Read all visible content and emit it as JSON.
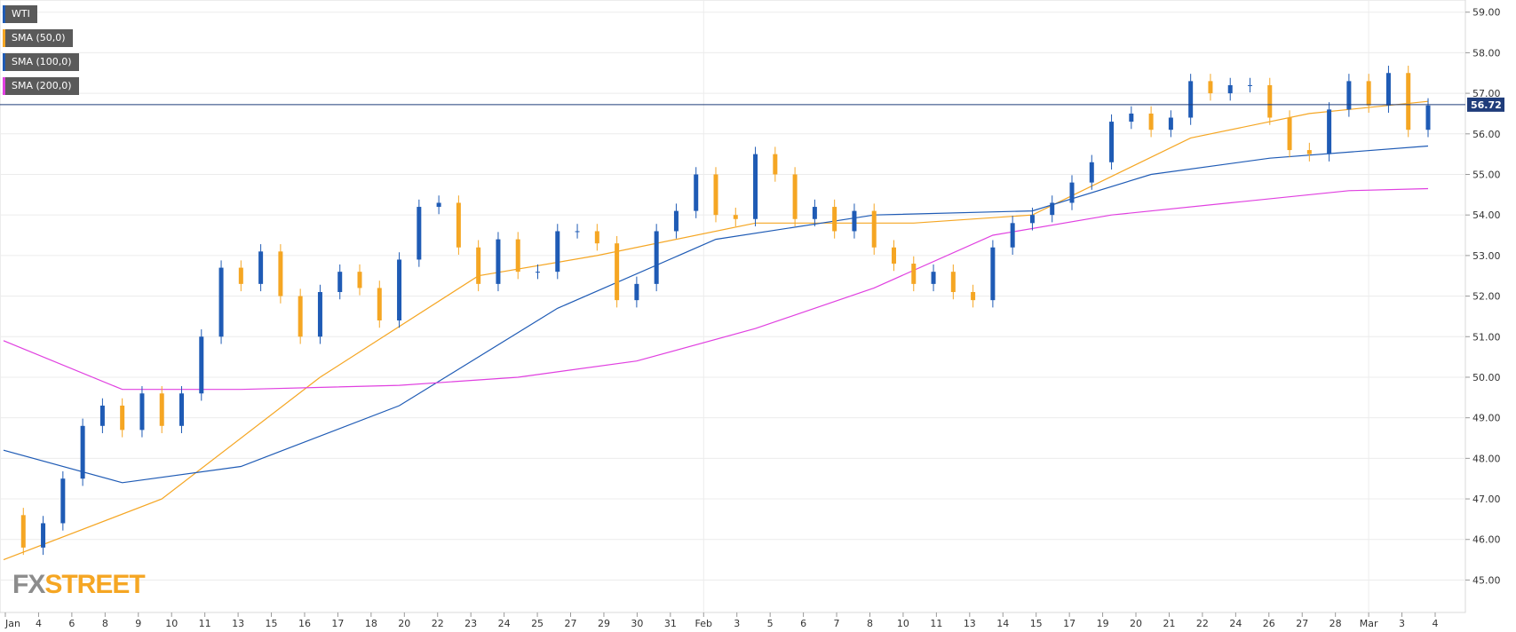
{
  "chart_data": {
    "type": "candlestick",
    "symbol": "WTI",
    "last_price": "56.72",
    "ylim": [
      44.2,
      59.3
    ],
    "y_ticks": [
      "45.00",
      "46.00",
      "47.00",
      "48.00",
      "49.00",
      "50.00",
      "51.00",
      "52.00",
      "53.00",
      "54.00",
      "55.00",
      "56.00",
      "57.00",
      "58.00",
      "59.00"
    ],
    "x_ticks": [
      "Jan",
      "4",
      "6",
      "8",
      "9",
      "10",
      "11",
      "13",
      "15",
      "16",
      "17",
      "18",
      "20",
      "22",
      "23",
      "24",
      "25",
      "27",
      "29",
      "30",
      "31",
      "Feb",
      "3",
      "5",
      "6",
      "7",
      "8",
      "10",
      "11",
      "13",
      "14",
      "15",
      "17",
      "19",
      "20",
      "21",
      "22",
      "24",
      "26",
      "27",
      "28",
      "Mar",
      "3",
      "4"
    ],
    "grid": true,
    "legend": [
      {
        "label": "WTI",
        "color": "#1f5bb5"
      },
      {
        "label": "SMA (50,0)",
        "color": "#f5a623"
      },
      {
        "label": "SMA (100,0)",
        "color": "#1f5bb5"
      },
      {
        "label": "SMA (200,0)",
        "color": "#e040e0"
      }
    ],
    "colors": {
      "up": "#1f5bb5",
      "down": "#f5a623",
      "price_line": "#1f3c7a"
    },
    "close_path": [
      46.6,
      45.8,
      46.4,
      47.5,
      48.8,
      49.3,
      48.7,
      49.6,
      48.8,
      49.6,
      51.0,
      52.7,
      52.3,
      53.1,
      52.0,
      51.0,
      52.1,
      52.6,
      52.2,
      51.4,
      52.9,
      54.2,
      54.3,
      53.2,
      52.3,
      53.4,
      52.6,
      52.6,
      53.6,
      53.6,
      53.3,
      51.9,
      52.3,
      53.6,
      54.1,
      55.0,
      54.0,
      53.9,
      55.5,
      55.0,
      53.9,
      54.2,
      53.6,
      54.1,
      53.2,
      52.8,
      52.3,
      52.6,
      52.1,
      51.9,
      53.2,
      53.8,
      54.0,
      54.3,
      54.8,
      55.3,
      56.3,
      56.5,
      56.1,
      56.4,
      57.3,
      57.0,
      57.2,
      57.2,
      56.4,
      55.6,
      55.5,
      56.6,
      57.3,
      56.7,
      57.5,
      56.1,
      56.7
    ],
    "series": [
      {
        "name": "SMA (50,0)",
        "x": [
          0,
          8,
          16,
          24,
          30,
          38,
          46,
          52,
          60,
          66,
          72
        ],
        "values": [
          45.5,
          47.0,
          50.0,
          52.5,
          53.0,
          53.8,
          53.8,
          54.0,
          55.9,
          56.5,
          56.8
        ]
      },
      {
        "name": "SMA (100,0)",
        "x": [
          0,
          6,
          12,
          20,
          28,
          36,
          44,
          52,
          58,
          64,
          72
        ],
        "values": [
          48.2,
          47.4,
          47.8,
          49.3,
          51.7,
          53.4,
          54.0,
          54.1,
          55.0,
          55.4,
          55.7
        ]
      },
      {
        "name": "SMA (200,0)",
        "x": [
          0,
          6,
          12,
          20,
          26,
          32,
          38,
          44,
          50,
          56,
          62,
          68,
          72
        ],
        "values": [
          50.9,
          49.7,
          49.7,
          49.8,
          50.0,
          50.4,
          51.2,
          52.2,
          53.5,
          54.0,
          54.3,
          54.6,
          54.65
        ]
      }
    ]
  }
}
